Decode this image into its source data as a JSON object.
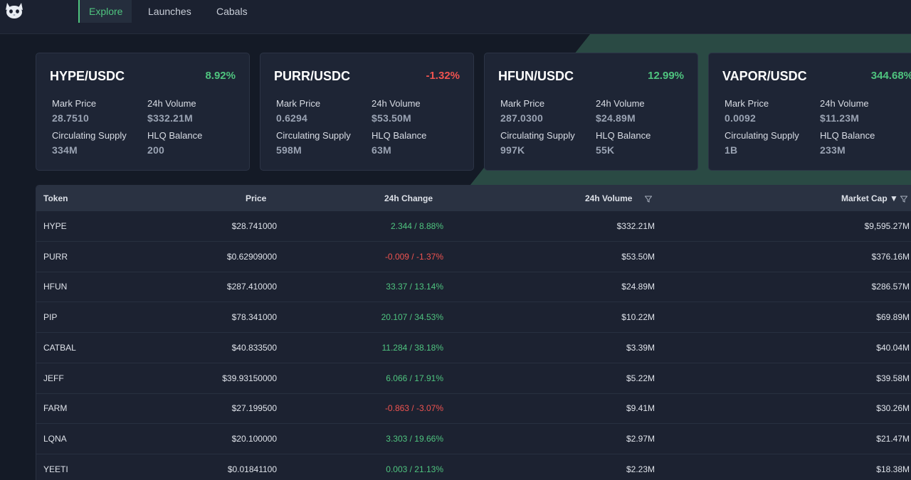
{
  "nav": {
    "tabs": [
      {
        "label": "Explore",
        "active": true
      },
      {
        "label": "Launches",
        "active": false
      },
      {
        "label": "Cabals",
        "active": false
      }
    ]
  },
  "colors": {
    "positive": "#4fc47f",
    "negative": "#ef5350",
    "accent": "#4fc47f"
  },
  "cards": [
    {
      "pair": "HYPE/USDC",
      "change": "8.92%",
      "direction": "up",
      "mark_price_label": "Mark Price",
      "mark_price": "28.7510",
      "volume_label": "24h Volume",
      "volume": "$332.21M",
      "supply_label": "Circulating Supply",
      "supply": "334M",
      "balance_label": "HLQ Balance",
      "balance": "200"
    },
    {
      "pair": "PURR/USDC",
      "change": "-1.32%",
      "direction": "down",
      "mark_price_label": "Mark Price",
      "mark_price": "0.6294",
      "volume_label": "24h Volume",
      "volume": "$53.50M",
      "supply_label": "Circulating Supply",
      "supply": "598M",
      "balance_label": "HLQ Balance",
      "balance": "63M"
    },
    {
      "pair": "HFUN/USDC",
      "change": "12.99%",
      "direction": "up",
      "mark_price_label": "Mark Price",
      "mark_price": "287.0300",
      "volume_label": "24h Volume",
      "volume": "$24.89M",
      "supply_label": "Circulating Supply",
      "supply": "997K",
      "balance_label": "HLQ Balance",
      "balance": "55K"
    },
    {
      "pair": "VAPOR/USDC",
      "change": "344.68%",
      "direction": "up",
      "mark_price_label": "Mark Price",
      "mark_price": "0.0092",
      "volume_label": "24h Volume",
      "volume": "$11.23M",
      "supply_label": "Circulating Supply",
      "supply": "1B",
      "balance_label": "HLQ Balance",
      "balance": "233M"
    }
  ],
  "table": {
    "headers": {
      "token": "Token",
      "price": "Price",
      "change": "24h Change",
      "volume": "24h Volume",
      "market_cap": "Market Cap ▼"
    },
    "rows": [
      {
        "token": "HYPE",
        "price": "$28.741000",
        "change": "2.344 / 8.88%",
        "direction": "up",
        "volume": "$332.21M",
        "market_cap": "$9,595.27M"
      },
      {
        "token": "PURR",
        "price": "$0.62909000",
        "change": "-0.009 / -1.37%",
        "direction": "down",
        "volume": "$53.50M",
        "market_cap": "$376.16M"
      },
      {
        "token": "HFUN",
        "price": "$287.410000",
        "change": "33.37 / 13.14%",
        "direction": "up",
        "volume": "$24.89M",
        "market_cap": "$286.57M"
      },
      {
        "token": "PIP",
        "price": "$78.341000",
        "change": "20.107 / 34.53%",
        "direction": "up",
        "volume": "$10.22M",
        "market_cap": "$69.89M"
      },
      {
        "token": "CATBAL",
        "price": "$40.833500",
        "change": "11.284 / 38.18%",
        "direction": "up",
        "volume": "$3.39M",
        "market_cap": "$40.04M"
      },
      {
        "token": "JEFF",
        "price": "$39.93150000",
        "change": "6.066 / 17.91%",
        "direction": "up",
        "volume": "$5.22M",
        "market_cap": "$39.58M"
      },
      {
        "token": "FARM",
        "price": "$27.199500",
        "change": "-0.863 / -3.07%",
        "direction": "down",
        "volume": "$9.41M",
        "market_cap": "$30.26M"
      },
      {
        "token": "LQNA",
        "price": "$20.100000",
        "change": "3.303 / 19.66%",
        "direction": "up",
        "volume": "$2.97M",
        "market_cap": "$21.47M"
      },
      {
        "token": "YEETI",
        "price": "$0.01841100",
        "change": "0.003 / 21.13%",
        "direction": "up",
        "volume": "$2.23M",
        "market_cap": "$18.38M"
      }
    ]
  }
}
